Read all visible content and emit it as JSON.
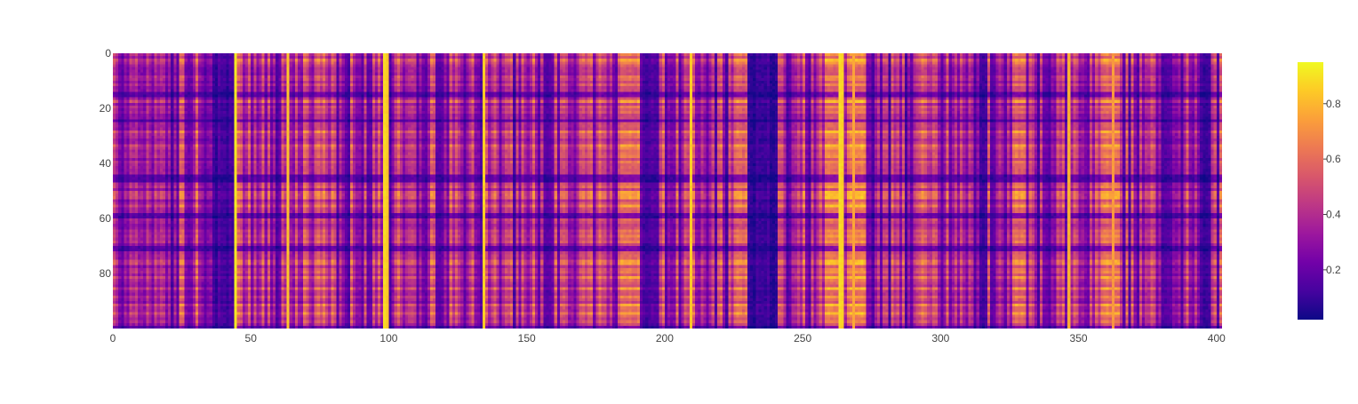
{
  "chart_data": {
    "type": "heatmap",
    "title": "",
    "xlabel": "",
    "ylabel": "",
    "n_cols": 402,
    "n_rows": 100,
    "xlim": [
      0,
      402
    ],
    "ylim": [
      100,
      0
    ],
    "y_reversed": true,
    "x_ticks": [
      0,
      50,
      100,
      150,
      200,
      250,
      300,
      350,
      400
    ],
    "x_tick_labels": [
      "0",
      "50",
      "100",
      "150",
      "200",
      "250",
      "300",
      "350",
      "400"
    ],
    "y_ticks": [
      0,
      20,
      40,
      60,
      80
    ],
    "y_tick_labels": [
      "0",
      "20",
      "40",
      "60",
      "80"
    ],
    "zlim": [
      0.02,
      0.95
    ],
    "colorbar": {
      "ticks": [
        0.2,
        0.4,
        0.6,
        0.8
      ],
      "tick_labels": [
        "0.2",
        "0.4",
        "0.6",
        "0.8"
      ],
      "placement": "right"
    },
    "colorscale": "Plasma",
    "colorscale_stops": [
      "#0d0887",
      "#46039f",
      "#7201a8",
      "#9c179e",
      "#bd3786",
      "#d8576b",
      "#ed7953",
      "#fb9f3a",
      "#fdca26",
      "#f0f921"
    ],
    "bright_columns": [
      {
        "x": 44,
        "value": 0.93
      },
      {
        "x": 63,
        "value": 0.85
      },
      {
        "x": 98,
        "value": 0.9
      },
      {
        "x": 99,
        "value": 0.85
      },
      {
        "x": 134,
        "value": 0.88
      },
      {
        "x": 209,
        "value": 0.87
      },
      {
        "x": 263,
        "value": 0.9
      },
      {
        "x": 264,
        "value": 0.88
      },
      {
        "x": 268,
        "value": 0.78
      },
      {
        "x": 346,
        "value": 0.8
      },
      {
        "x": 362,
        "value": 0.75
      }
    ],
    "bright_column_bands": [
      {
        "from": 184,
        "to": 190,
        "value": 0.62
      },
      {
        "from": 225,
        "to": 230,
        "value": 0.6
      },
      {
        "from": 258,
        "to": 262,
        "value": 0.65
      },
      {
        "from": 266,
        "to": 272,
        "value": 0.66
      },
      {
        "from": 326,
        "to": 330,
        "value": 0.62
      },
      {
        "from": 358,
        "to": 364,
        "value": 0.63
      }
    ],
    "dark_column_bands": [
      {
        "from": 36,
        "to": 43,
        "value": 0.08
      },
      {
        "from": 192,
        "to": 197,
        "value": 0.1
      },
      {
        "from": 230,
        "to": 240,
        "value": 0.06
      },
      {
        "from": 314,
        "to": 316,
        "value": 0.08
      },
      {
        "from": 380,
        "to": 383,
        "value": 0.1
      },
      {
        "from": 394,
        "to": 397,
        "value": 0.05
      }
    ],
    "bright_rows": [
      2,
      17,
      28,
      33,
      50,
      51,
      52,
      55,
      75,
      76,
      81,
      85,
      91,
      94
    ],
    "dark_rows": [
      14,
      15,
      24,
      44,
      45,
      46,
      58,
      59,
      70,
      71,
      99
    ]
  }
}
